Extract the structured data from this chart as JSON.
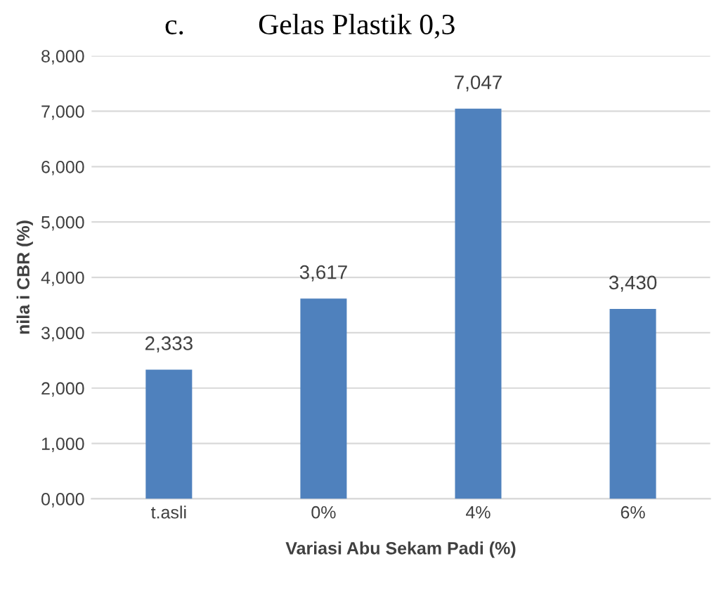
{
  "chart_data": {
    "type": "bar",
    "title": "c.          Gelas Plastik 0,3",
    "xlabel": "Variasi Abu Sekam Padi (%)",
    "ylabel": "nila i CBR (%)",
    "categories": [
      "t.asli",
      "0%",
      "4%",
      "6%"
    ],
    "values": [
      2.333,
      3.617,
      7.047,
      3.43
    ],
    "value_labels": [
      "2,333",
      "3,617",
      "7,047",
      "3,430"
    ],
    "color": "#4f81bd",
    "ylim": [
      0,
      8
    ],
    "yticks": [
      {
        "value": 0,
        "label": "0,000"
      },
      {
        "value": 1,
        "label": "1,000"
      },
      {
        "value": 2,
        "label": "2,000"
      },
      {
        "value": 3,
        "label": "3,000"
      },
      {
        "value": 4,
        "label": "4,000"
      },
      {
        "value": 5,
        "label": "5,000"
      },
      {
        "value": 6,
        "label": "6,000"
      },
      {
        "value": 7,
        "label": "7,000"
      },
      {
        "value": 8,
        "label": "8,000"
      }
    ],
    "grid": "y"
  }
}
